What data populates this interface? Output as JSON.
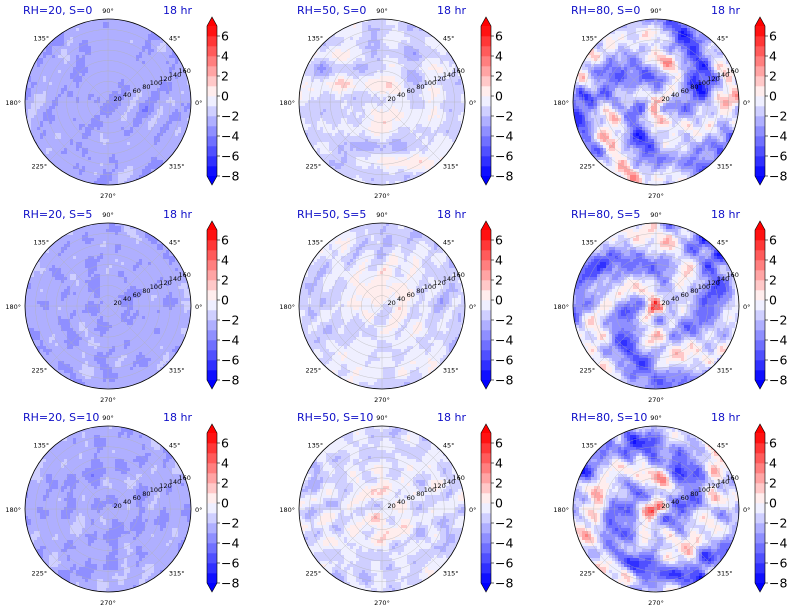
{
  "chart_data": {
    "type": "polar-contourf-grid",
    "time_label": "18 hr",
    "grid": {
      "rows": 3,
      "cols": 3
    },
    "panels": [
      {
        "title": "RH=20, S=0",
        "rh": 20,
        "s": 0
      },
      {
        "title": "RH=50, S=0",
        "rh": 50,
        "s": 0
      },
      {
        "title": "RH=80, S=0",
        "rh": 80,
        "s": 0
      },
      {
        "title": "RH=20, S=5",
        "rh": 20,
        "s": 5
      },
      {
        "title": "RH=50, S=5",
        "rh": 50,
        "s": 5
      },
      {
        "title": "RH=80, S=5",
        "rh": 80,
        "s": 5
      },
      {
        "title": "RH=20, S=10",
        "rh": 20,
        "s": 10
      },
      {
        "title": "RH=50, S=10",
        "rh": 50,
        "s": 10
      },
      {
        "title": "RH=80, S=10",
        "rh": 80,
        "s": 10
      }
    ],
    "angular_ticks": [
      "90°",
      "45°",
      "0°",
      "315°",
      "270°",
      "225°",
      "180°",
      "135°"
    ],
    "radial_ticks": [
      "20",
      "40",
      "60",
      "80",
      "100",
      "120",
      "140",
      "160"
    ],
    "colorbar": {
      "ticks": [
        "6",
        "4",
        "2",
        "0",
        "−2",
        "−4",
        "−6",
        "−8"
      ],
      "tick_values": [
        6,
        4,
        2,
        0,
        -2,
        -4,
        -6,
        -8
      ],
      "levels": [
        -8,
        -7,
        -6,
        -5,
        -4,
        -3,
        -2,
        -1,
        0,
        1,
        2,
        3,
        4,
        5,
        6,
        7
      ],
      "extend": "both",
      "colormap": "bwr",
      "colors": {
        "min": "#0000ff",
        "mid": "#ffffff",
        "max": "#ff0000"
      }
    }
  }
}
